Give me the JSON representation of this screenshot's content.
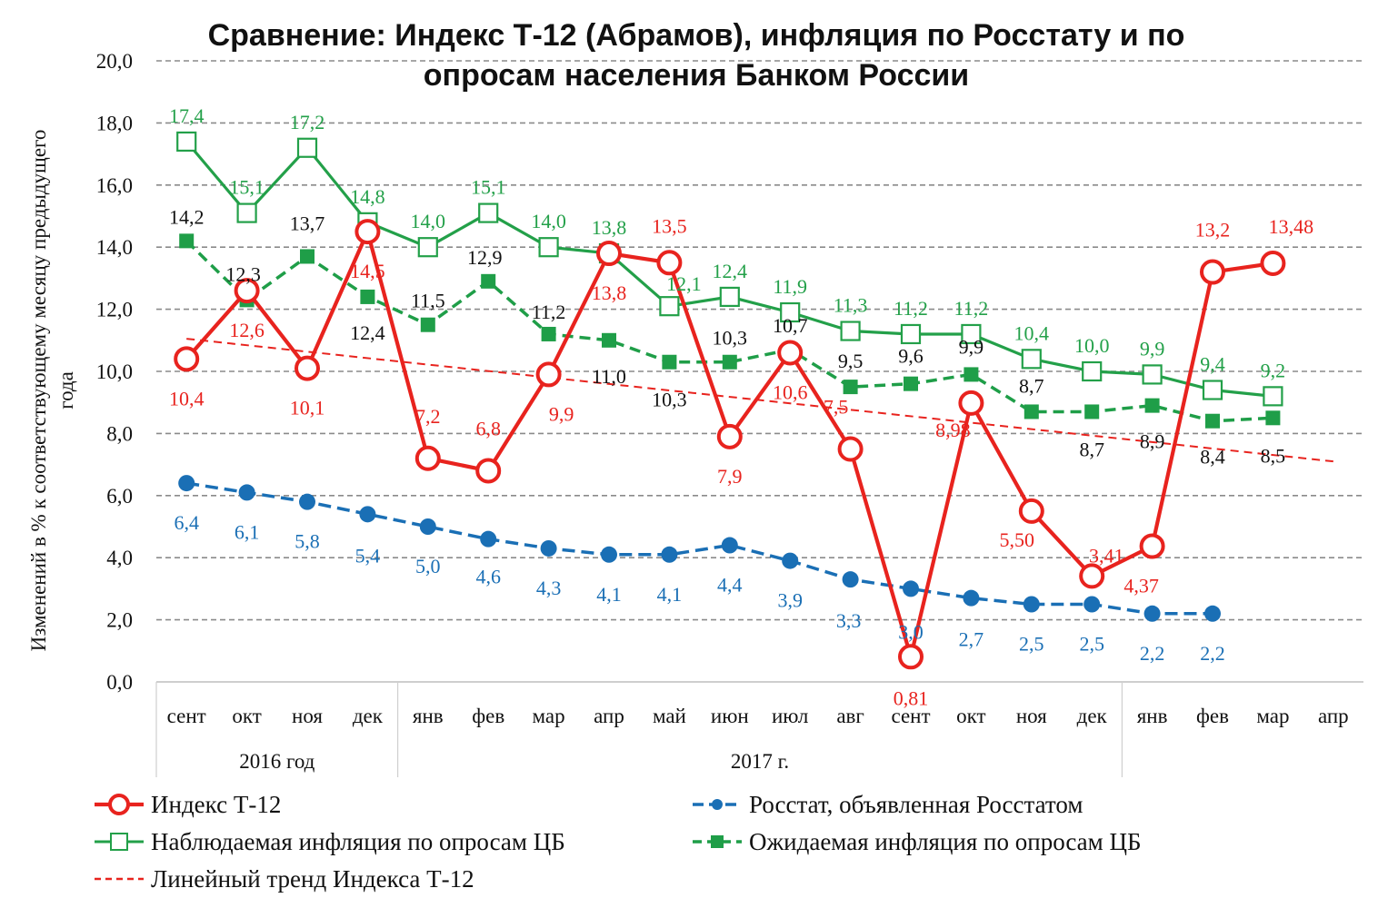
{
  "chart_data": {
    "type": "line",
    "title": "Сравнение: Индекс Т-12 (Абрамов), инфляция по Росстату и по опросам населения Банком России",
    "title_lines": [
      "Сравнение: Индекс Т-12 (Абрамов), инфляция по Росстату и по",
      "опросам населения Банком России"
    ],
    "ylabel_lines": [
      "Изменений в % к соответствующему месяцу предыдущего",
      "года"
    ],
    "ylim": [
      0,
      20
    ],
    "ytick_labels": [
      "0,0",
      "2,0",
      "4,0",
      "6,0",
      "8,0",
      "10,0",
      "12,0",
      "14,0",
      "16,0",
      "18,0",
      "20,0"
    ],
    "grid": true,
    "legend_position": "bottom",
    "categories": [
      "сент",
      "окт",
      "ноя",
      "дек",
      "янв",
      "фев",
      "мар",
      "апр",
      "май",
      "июн",
      "июл",
      "авг",
      "сент",
      "окт",
      "ноя",
      "дек",
      "янв",
      "фев",
      "мар",
      "апр"
    ],
    "groups": [
      {
        "label": "2016 год",
        "start": 0,
        "end": 3
      },
      {
        "label": "2017 г.",
        "start": 4,
        "end": 15
      },
      {
        "label": "",
        "start": 16,
        "end": 19
      }
    ],
    "series": [
      {
        "name": "Индекс Т-12",
        "color": "#e8231e",
        "marker": "circle-open",
        "values": [
          10.4,
          12.6,
          10.1,
          14.5,
          7.2,
          6.8,
          9.9,
          13.8,
          13.5,
          7.9,
          10.6,
          7.5,
          0.81,
          8.98,
          5.5,
          3.41,
          4.37,
          13.2,
          13.48,
          null
        ],
        "labels": [
          "10,4",
          "12,6",
          "10,1",
          "14,5",
          "7,2",
          "6,8",
          "9,9",
          "13,8",
          "13,5",
          "7,9",
          "10,6",
          "7,5",
          "0,81",
          "8,98",
          "5,50",
          "3,41",
          "4,37",
          "13,2",
          "13,48",
          ""
        ]
      },
      {
        "name": "Росстат, объявленная Росстатом",
        "color": "#1a6fb5",
        "marker": "dot",
        "values": [
          6.4,
          6.1,
          5.8,
          5.4,
          5.0,
          4.6,
          4.3,
          4.1,
          4.1,
          4.4,
          3.9,
          3.3,
          3.0,
          2.7,
          2.5,
          2.5,
          2.2,
          2.2,
          null,
          null
        ],
        "labels": [
          "6,4",
          "6,1",
          "5,8",
          "5,4",
          "5,0",
          "4,6",
          "4,3",
          "4,1",
          "4,1",
          "4,4",
          "3,9",
          "3,3",
          "3,0",
          "2,7",
          "2,5",
          "2,5",
          "2,2",
          "2,2",
          "",
          ""
        ]
      },
      {
        "name": "Наблюдаемая инфляция по опросам ЦБ",
        "color": "#23a049",
        "marker": "square-open",
        "values": [
          17.4,
          15.1,
          17.2,
          14.8,
          14.0,
          15.1,
          14.0,
          13.8,
          12.1,
          12.4,
          11.9,
          11.3,
          11.2,
          11.2,
          10.4,
          10.0,
          9.9,
          9.4,
          9.2,
          null
        ],
        "labels": [
          "17,4",
          "15,1",
          "17,2",
          "14,8",
          "14,0",
          "15,1",
          "14,0",
          "13,8",
          "12,1",
          "12,4",
          "11,9",
          "11,3",
          "11,2",
          "11,2",
          "10,4",
          "10,0",
          "9,9",
          "9,4",
          "9,2",
          ""
        ]
      },
      {
        "name": "Ожидаемая инфляция по опросам ЦБ",
        "color": "#1f9e48",
        "marker": "square",
        "values": [
          14.2,
          12.3,
          13.7,
          12.4,
          11.5,
          12.9,
          11.2,
          11.0,
          10.3,
          10.3,
          10.7,
          9.5,
          9.6,
          9.9,
          8.7,
          8.7,
          8.9,
          8.4,
          8.5,
          null
        ],
        "labels": [
          "14,2",
          "12,3",
          "13,7",
          "12,4",
          "11,5",
          "12,9",
          "11,2",
          "11,0",
          "10,3",
          "10,3",
          "10,7",
          "9,5",
          "9,6",
          "9,9",
          "8,7",
          "8,7",
          "8,9",
          "8,4",
          "8,5",
          ""
        ]
      },
      {
        "name": "Линейный тренд Индекса Т-12",
        "color": "#e8231e",
        "marker": "dashed-trend",
        "trend_start": 11.05,
        "trend_end": 7.1
      }
    ]
  }
}
